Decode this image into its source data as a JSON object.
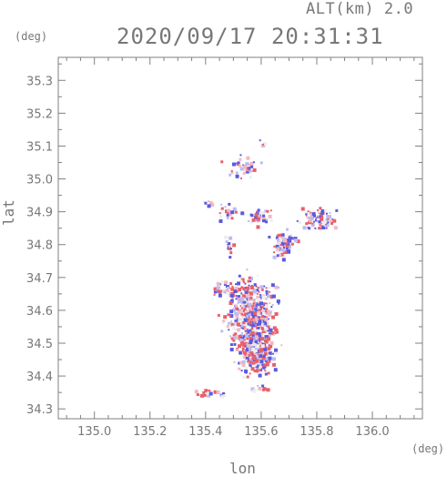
{
  "header": {
    "altitude_label": "ALT(km) 2.0",
    "datetime": "2020/09/17 20:31:31"
  },
  "chart_data": {
    "type": "heatmap",
    "title": "2020/09/17 20:31:31",
    "subtitle": "ALT(km) 2.0",
    "xlabel": "lon",
    "ylabel": "lat",
    "x_unit": "(deg)",
    "y_unit": "(deg)",
    "xlim": [
      134.87,
      136.18
    ],
    "ylim": [
      34.27,
      35.37
    ],
    "x_ticks": [
      "135.0",
      "135.2",
      "135.4",
      "135.6",
      "135.8",
      "136.0"
    ],
    "y_ticks": [
      "34.3",
      "34.4",
      "34.5",
      "34.6",
      "34.7",
      "34.8",
      "34.9",
      "35.0",
      "35.1",
      "35.2",
      "35.3"
    ],
    "grid": false,
    "colors": {
      "positive": "#e8606a",
      "negative": "#5a5ae0",
      "axis": "#808080"
    },
    "clusters": [
      {
        "lon": 135.53,
        "lat": 35.04,
        "spread_lon": 0.05,
        "spread_lat": 0.03,
        "count": 40
      },
      {
        "lon": 135.6,
        "lat": 35.11,
        "spread_lon": 0.01,
        "spread_lat": 0.01,
        "count": 5
      },
      {
        "lon": 135.56,
        "lat": 34.59,
        "spread_lon": 0.07,
        "spread_lat": 0.09,
        "count": 520
      },
      {
        "lon": 135.58,
        "lat": 34.47,
        "spread_lon": 0.05,
        "spread_lat": 0.05,
        "count": 260
      },
      {
        "lon": 135.46,
        "lat": 34.67,
        "spread_lon": 0.03,
        "spread_lat": 0.02,
        "count": 40
      },
      {
        "lon": 135.8,
        "lat": 34.88,
        "spread_lon": 0.05,
        "spread_lat": 0.03,
        "count": 90
      },
      {
        "lon": 135.68,
        "lat": 34.81,
        "spread_lon": 0.04,
        "spread_lat": 0.04,
        "count": 70
      },
      {
        "lon": 135.59,
        "lat": 34.89,
        "spread_lon": 0.03,
        "spread_lat": 0.02,
        "count": 40
      },
      {
        "lon": 135.48,
        "lat": 34.9,
        "spread_lon": 0.03,
        "spread_lat": 0.02,
        "count": 22
      },
      {
        "lon": 135.4,
        "lat": 34.93,
        "spread_lon": 0.02,
        "spread_lat": 0.01,
        "count": 8
      },
      {
        "lon": 135.48,
        "lat": 34.8,
        "spread_lon": 0.02,
        "spread_lat": 0.04,
        "count": 15
      },
      {
        "lon": 135.42,
        "lat": 34.35,
        "spread_lon": 0.05,
        "spread_lat": 0.01,
        "count": 20
      },
      {
        "lon": 135.6,
        "lat": 34.37,
        "spread_lon": 0.04,
        "spread_lat": 0.01,
        "count": 10
      }
    ]
  }
}
